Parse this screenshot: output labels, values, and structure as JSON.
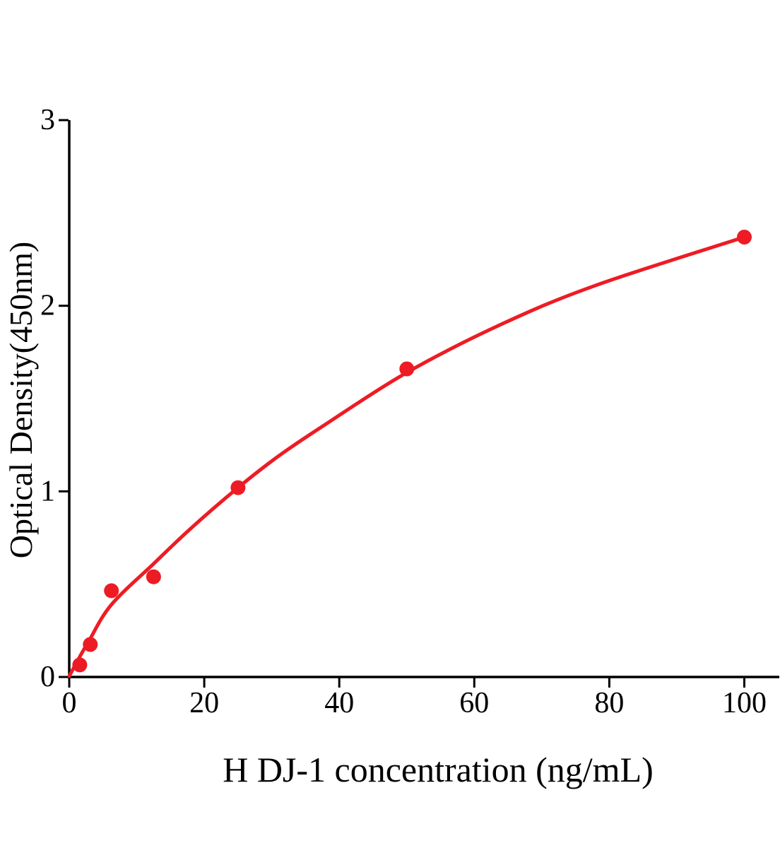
{
  "chart_data": {
    "type": "scatter",
    "title": "",
    "xlabel": "H DJ-1 concentration (ng/mL)",
    "ylabel": "Optical Density(450nm)",
    "xlim": [
      0,
      105
    ],
    "ylim": [
      0,
      3
    ],
    "x_ticks": [
      0,
      20,
      40,
      60,
      80,
      100
    ],
    "y_ticks": [
      0,
      1,
      2,
      3
    ],
    "grid": false,
    "legend": "none",
    "axis_color": "#000000",
    "accent_color": "#ed1c24",
    "series": [
      {
        "name": "standard-points",
        "type": "scatter",
        "color": "#ed1c24",
        "x": [
          1.56,
          3.12,
          6.25,
          12.5,
          25,
          50,
          100
        ],
        "y": [
          0.065,
          0.175,
          0.465,
          0.54,
          1.02,
          1.66,
          2.37
        ]
      },
      {
        "name": "fit-curve",
        "type": "line",
        "color": "#ed1c24",
        "points": [
          [
            0,
            0.005
          ],
          [
            1.5,
            0.105
          ],
          [
            3,
            0.2
          ],
          [
            6.25,
            0.39
          ],
          [
            12.5,
            0.61
          ],
          [
            18,
            0.8
          ],
          [
            25,
            1.02
          ],
          [
            31,
            1.19
          ],
          [
            37.5,
            1.35
          ],
          [
            50,
            1.64
          ],
          [
            64,
            1.9
          ],
          [
            78,
            2.11
          ],
          [
            100,
            2.37
          ]
        ]
      }
    ]
  }
}
